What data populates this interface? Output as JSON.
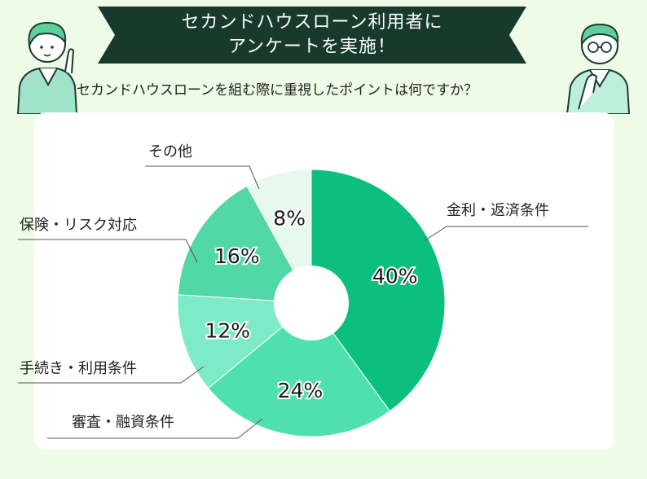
{
  "header": {
    "title_line1": "セカンドハウスローン利用者に",
    "title_line2": "アンケートを実施！"
  },
  "question": "セカンドハウスローンを組む際に重視したポイントは何ですか？",
  "chart_data": {
    "type": "pie",
    "donut": true,
    "unit": "%",
    "slices": [
      {
        "label": "金利・返済条件",
        "value": 40,
        "display": "40%",
        "color": "#0cbf7e"
      },
      {
        "label": "審査・融資条件",
        "value": 24,
        "display": "24%",
        "color": "#4fe0b0"
      },
      {
        "label": "手続き・利用条件",
        "value": 12,
        "display": "12%",
        "color": "#7eebc8"
      },
      {
        "label": "保険・リスク対応",
        "value": 16,
        "display": "16%",
        "color": "#52d7a6"
      },
      {
        "label": "その他",
        "value": 8,
        "display": "8%",
        "color": "#e7f8ef"
      }
    ]
  }
}
